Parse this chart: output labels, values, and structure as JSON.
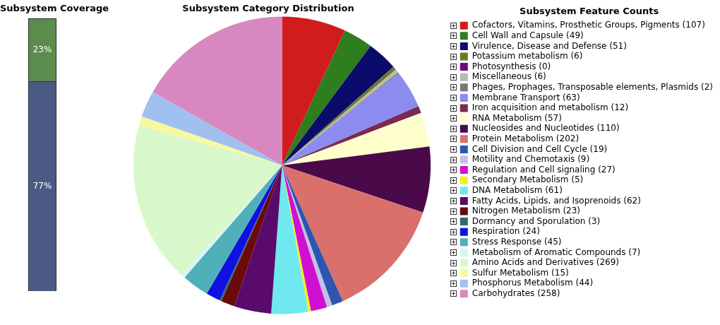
{
  "chart_data": [
    {
      "type": "bar",
      "title": "Subsystem Coverage",
      "categories": [
        null
      ],
      "stacked": true,
      "tick_labels": false,
      "legend": false,
      "series": [
        {
          "color": "#4b5a85",
          "values": [
            77
          ],
          "value_labels": [
            "77%"
          ]
        },
        {
          "color": "#5b8c4e",
          "values": [
            23
          ],
          "value_labels": [
            "23%"
          ]
        }
      ]
    },
    {
      "type": "pie",
      "title": "Subsystem Category Distribution",
      "legend_title": "Subsystem Feature Counts",
      "legend": "right",
      "categories": [
        "Cofactors, Vitamins, Prosthetic Groups, Pigments (107)",
        "Cell Wall and Capsule (49)",
        "Virulence, Disease and Defense (51)",
        "Potassium metabolism (6)",
        "Photosynthesis (0)",
        "Miscellaneous (6)",
        "Phages, Prophages, Transposable elements, Plasmids (2)",
        "Membrane Transport (63)",
        "Iron acquisition and metabolism (12)",
        "RNA Metabolism (57)",
        "Nucleosides and Nucleotides (110)",
        "Protein Metabolism (202)",
        "Cell Division and Cell Cycle (19)",
        "Motility and Chemotaxis (9)",
        "Regulation and Cell signaling (27)",
        "Secondary Metabolism (5)",
        "DNA Metabolism (61)",
        "Fatty Acids, Lipids, and Isoprenoids (62)",
        "Nitrogen Metabolism (23)",
        "Dormancy and Sporulation (3)",
        "Respiration (24)",
        "Stress Response (45)",
        "Metabolism of Aromatic Compounds (7)",
        "Amino Acids and Derivatives (269)",
        "Sulfur Metabolism (15)",
        "Phosphorus Metabolism (44)",
        "Carbohydrates (258)"
      ],
      "values": [
        107,
        49,
        51,
        6,
        0,
        6,
        2,
        63,
        12,
        57,
        110,
        202,
        19,
        9,
        27,
        5,
        61,
        62,
        23,
        3,
        24,
        45,
        7,
        269,
        15,
        44,
        258
      ],
      "colors": [
        "#d01c1c",
        "#2e7d1e",
        "#0b0b6b",
        "#6b7a1e",
        "#6b0a7a",
        "#b8b8b8",
        "#777777",
        "#8c8cf0",
        "#7a2a52",
        "#ffffcc",
        "#4a0a4a",
        "#d9706b",
        "#2e55b0",
        "#c0c0e8",
        "#d010d0",
        "#f0f020",
        "#70e8f0",
        "#5a0a6a",
        "#6a0a0a",
        "#2e6b6b",
        "#1010e0",
        "#50b0b8",
        "#d8f5f5",
        "#d8f8cc",
        "#f8f8a0",
        "#a0c0f0",
        "#d888c0"
      ]
    }
  ]
}
